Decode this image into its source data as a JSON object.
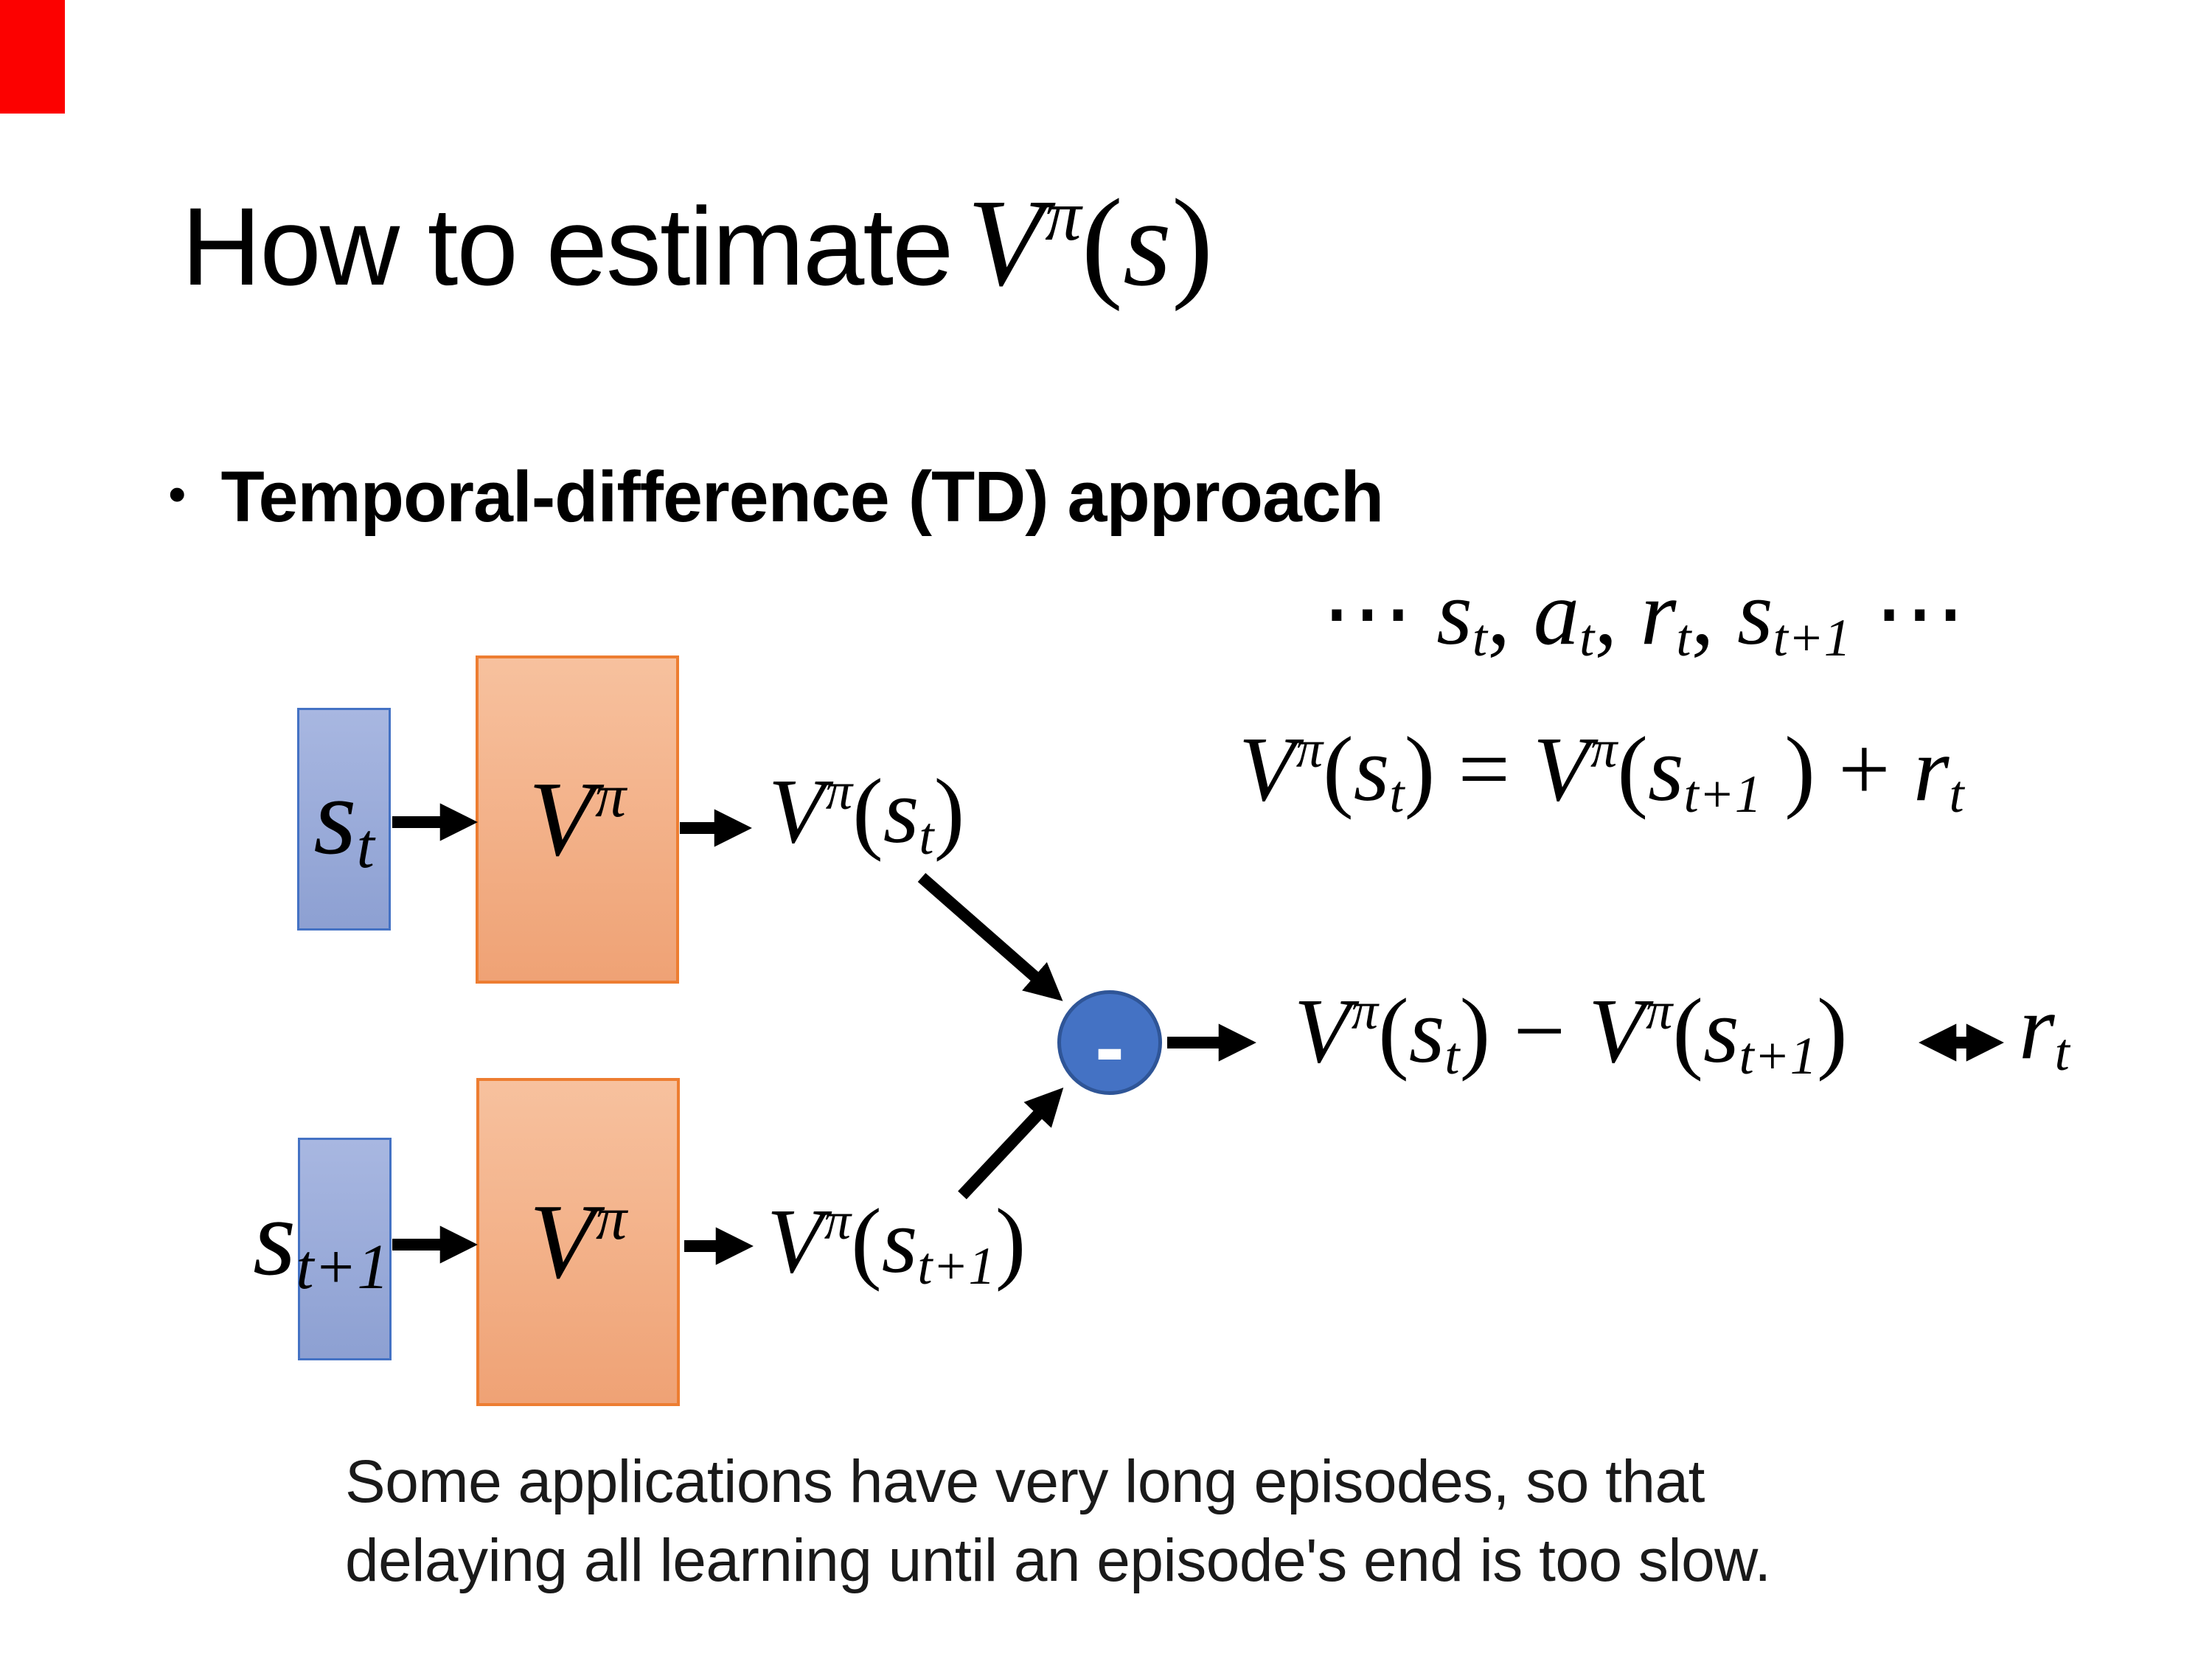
{
  "slide": {
    "colors": {
      "corner_mark": "#FC0100",
      "ink": "#000000",
      "footnote_ink": "#1A1A1A",
      "state_fill_top": "#A8B7E1",
      "state_fill_bottom": "#8DA0D2",
      "state_border": "#4472C4",
      "network_fill_top": "#F7C19E",
      "network_fill_bottom": "#EFA275",
      "network_border": "#ED7D31",
      "operator_fill": "#4472C4",
      "operator_border": "#2F5597",
      "arrow": "#000000"
    },
    "title": {
      "text": "How to estimate ",
      "math": [
        [
          "i",
          "V"
        ],
        [
          "sup",
          "π"
        ],
        [
          "u",
          "("
        ],
        [
          "i",
          "s"
        ],
        [
          "u",
          ")"
        ]
      ]
    },
    "bullet": {
      "marker": "•",
      "text": "Temporal-difference (TD) approach"
    },
    "trajectory": [
      [
        "u",
        "⋯ "
      ],
      [
        "i",
        "s"
      ],
      [
        "sub",
        "t"
      ],
      [
        "u",
        ", "
      ],
      [
        "i",
        "a"
      ],
      [
        "sub",
        "t"
      ],
      [
        "u",
        ", "
      ],
      [
        "i",
        "r"
      ],
      [
        "sub",
        "t"
      ],
      [
        "u",
        ", "
      ],
      [
        "i",
        "s"
      ],
      [
        "sub",
        "t+1"
      ],
      [
        "u",
        " ⋯"
      ]
    ],
    "td_equation": [
      [
        "i",
        "V"
      ],
      [
        "sup",
        "π"
      ],
      [
        "u",
        "("
      ],
      [
        "i",
        "s"
      ],
      [
        "sub",
        "t"
      ],
      [
        "u",
        ") = "
      ],
      [
        "i",
        "V"
      ],
      [
        "sup",
        "π"
      ],
      [
        "u",
        "("
      ],
      [
        "i",
        "s"
      ],
      [
        "sub",
        "t+1"
      ],
      [
        "u",
        " ) + "
      ],
      [
        "i",
        "r"
      ],
      [
        "sub",
        "t"
      ]
    ],
    "diagram": {
      "state_t": [
        [
          "i",
          "s"
        ],
        [
          "sub",
          "t"
        ]
      ],
      "state_t1": [
        [
          "i",
          "s"
        ],
        [
          "sub",
          "t+1"
        ]
      ],
      "network": [
        [
          "i",
          "V"
        ],
        [
          "sup",
          "π"
        ]
      ],
      "output_t": [
        [
          "i",
          "V"
        ],
        [
          "sup",
          "π"
        ],
        [
          "u",
          "("
        ],
        [
          "i",
          "s"
        ],
        [
          "sub",
          "t"
        ],
        [
          "u",
          ")"
        ]
      ],
      "output_t1": [
        [
          "i",
          "V"
        ],
        [
          "sup",
          "π"
        ],
        [
          "u",
          "("
        ],
        [
          "i",
          "s"
        ],
        [
          "sub",
          "t+1"
        ],
        [
          "u",
          ")"
        ]
      ],
      "operator": "-",
      "difference": [
        [
          "i",
          "V"
        ],
        [
          "sup",
          "π"
        ],
        [
          "u",
          "("
        ],
        [
          "i",
          "s"
        ],
        [
          "sub",
          "t"
        ],
        [
          "u",
          ") − "
        ],
        [
          "i",
          "V"
        ],
        [
          "sup",
          "π"
        ],
        [
          "u",
          "("
        ],
        [
          "i",
          "s"
        ],
        [
          "sub",
          "t+1"
        ],
        [
          "u",
          ")"
        ]
      ],
      "reward": [
        [
          "i",
          "r"
        ],
        [
          "sub",
          "t"
        ]
      ]
    },
    "footnote": {
      "line1": "Some applications have very long episodes, so that",
      "line2": "delaying all learning until an episode's end is too slow."
    }
  }
}
